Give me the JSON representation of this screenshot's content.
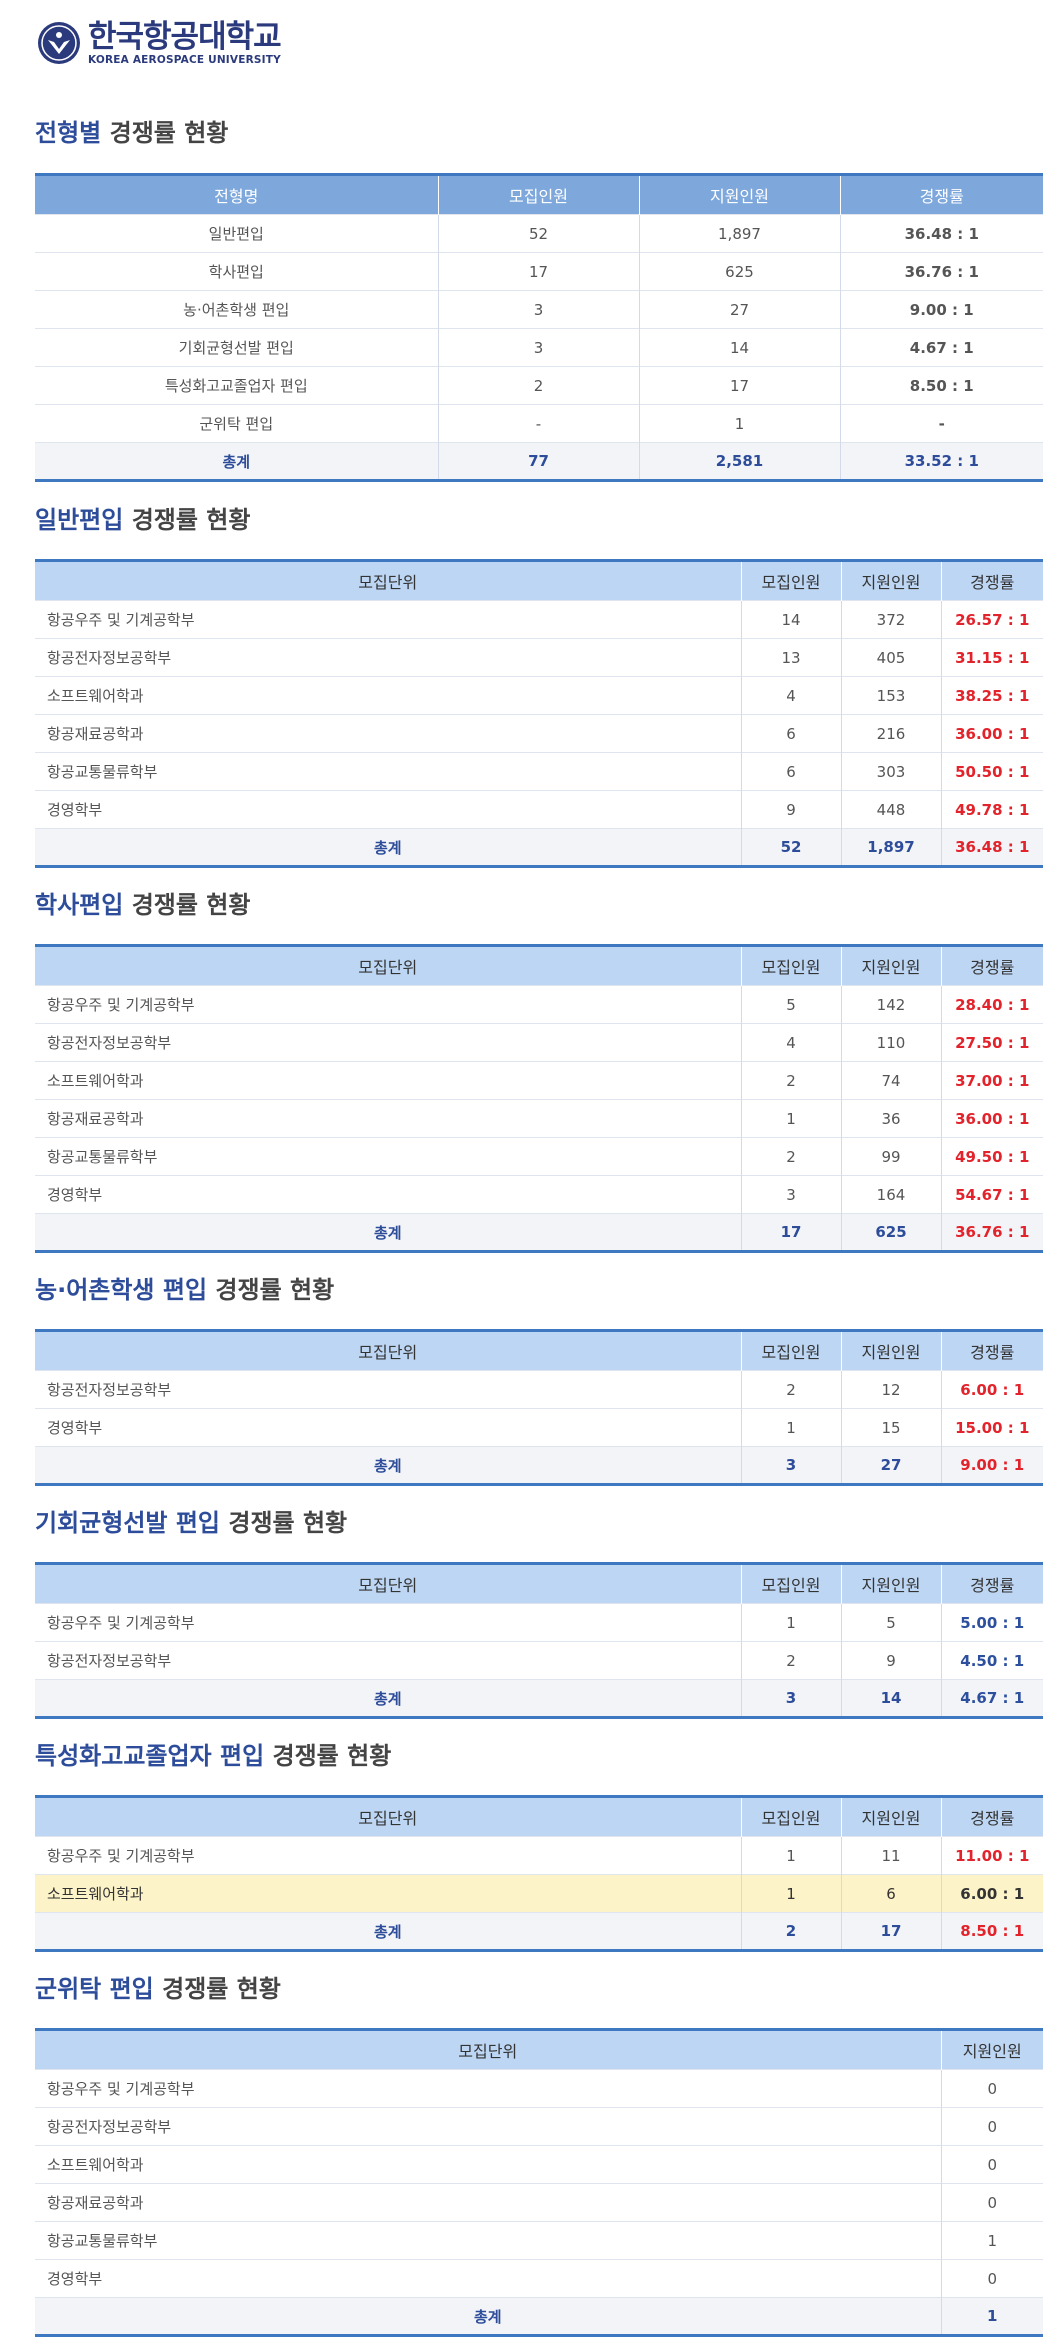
{
  "header": {
    "logo_ko": "한국항공대학교",
    "logo_en": "KOREA AEROSPACE UNIVERSITY"
  },
  "summary": {
    "title": "전형별 경쟁률 현황",
    "title_hl": "전형별",
    "title_rest": "경쟁률 현황",
    "columns": [
      "전형명",
      "모집인원",
      "지원인원",
      "경쟁률"
    ],
    "rows": [
      [
        "일반편입",
        "52",
        "1,897",
        "36.48 : 1"
      ],
      [
        "학사편입",
        "17",
        "625",
        "36.76 : 1"
      ],
      [
        "농·어촌학생 편입",
        "3",
        "27",
        "9.00 : 1"
      ],
      [
        "기회균형선발 편입",
        "3",
        "14",
        "4.67 : 1"
      ],
      [
        "특성화고교졸업자 편입",
        "2",
        "17",
        "8.50 : 1"
      ],
      [
        "군위탁 편입",
        "-",
        "1",
        "-"
      ]
    ],
    "total": [
      "총계",
      "77",
      "2,581",
      "33.52 : 1"
    ]
  },
  "general": {
    "title_hl": "일반편입",
    "title_rest": "경쟁률 현황",
    "columns": [
      "모집단위",
      "모집인원",
      "지원인원",
      "경쟁률"
    ],
    "rows": [
      [
        "항공우주 및 기계공학부",
        "14",
        "372",
        "26.57 : 1"
      ],
      [
        "항공전자정보공학부",
        "13",
        "405",
        "31.15 : 1"
      ],
      [
        "소프트웨어학과",
        "4",
        "153",
        "38.25 : 1"
      ],
      [
        "항공재료공학과",
        "6",
        "216",
        "36.00 : 1"
      ],
      [
        "항공교통물류학부",
        "6",
        "303",
        "50.50 : 1"
      ],
      [
        "경영학부",
        "9",
        "448",
        "49.78 : 1"
      ]
    ],
    "total": [
      "총계",
      "52",
      "1,897",
      "36.48 : 1"
    ]
  },
  "bachelor": {
    "title_hl": "학사편입",
    "title_rest": "경쟁률 현황",
    "columns": [
      "모집단위",
      "모집인원",
      "지원인원",
      "경쟁률"
    ],
    "rows": [
      [
        "항공우주 및 기계공학부",
        "5",
        "142",
        "28.40 : 1"
      ],
      [
        "항공전자정보공학부",
        "4",
        "110",
        "27.50 : 1"
      ],
      [
        "소프트웨어학과",
        "2",
        "74",
        "37.00 : 1"
      ],
      [
        "항공재료공학과",
        "1",
        "36",
        "36.00 : 1"
      ],
      [
        "항공교통물류학부",
        "2",
        "99",
        "49.50 : 1"
      ],
      [
        "경영학부",
        "3",
        "164",
        "54.67 : 1"
      ]
    ],
    "total": [
      "총계",
      "17",
      "625",
      "36.76 : 1"
    ]
  },
  "rural": {
    "title_hl": "농·어촌학생 편입",
    "title_rest": "경쟁률 현황",
    "columns": [
      "모집단위",
      "모집인원",
      "지원인원",
      "경쟁률"
    ],
    "rows": [
      [
        "항공전자정보공학부",
        "2",
        "12",
        "6.00 : 1"
      ],
      [
        "경영학부",
        "1",
        "15",
        "15.00 : 1"
      ]
    ],
    "total": [
      "총계",
      "3",
      "27",
      "9.00 : 1"
    ]
  },
  "balance": {
    "title_hl": "기회균형선발 편입",
    "title_rest": "경쟁률 현황",
    "columns": [
      "모집단위",
      "모집인원",
      "지원인원",
      "경쟁률"
    ],
    "rows": [
      [
        "항공우주 및 기계공학부",
        "1",
        "5",
        "5.00 : 1"
      ],
      [
        "항공전자정보공학부",
        "2",
        "9",
        "4.50 : 1"
      ]
    ],
    "total": [
      "총계",
      "3",
      "14",
      "4.67 : 1"
    ]
  },
  "vocational": {
    "title_hl": "특성화고교졸업자 편입",
    "title_rest": "경쟁률 현황",
    "columns": [
      "모집단위",
      "모집인원",
      "지원인원",
      "경쟁률"
    ],
    "rows": [
      [
        "항공우주 및 기계공학부",
        "1",
        "11",
        "11.00 : 1"
      ],
      [
        "소프트웨어학과",
        "1",
        "6",
        "6.00 : 1"
      ]
    ],
    "total": [
      "총계",
      "2",
      "17",
      "8.50 : 1"
    ]
  },
  "military": {
    "title_hl": "군위탁 편입",
    "title_rest": "경쟁률 현황",
    "columns": [
      "모집단위",
      "지원인원"
    ],
    "rows": [
      [
        "항공우주 및 기계공학부",
        "0"
      ],
      [
        "항공전자정보공학부",
        "0"
      ],
      [
        "소프트웨어학과",
        "0"
      ],
      [
        "항공재료공학과",
        "0"
      ],
      [
        "항공교통물류학부",
        "1"
      ],
      [
        "경영학부",
        "0"
      ]
    ],
    "total": [
      "총계",
      "1"
    ]
  },
  "colors": {
    "accent": "#2d4d9a",
    "rate_red": "#e2232b",
    "header_blue": "#bdd6f3",
    "highlight_row": "#fdf3c8"
  }
}
